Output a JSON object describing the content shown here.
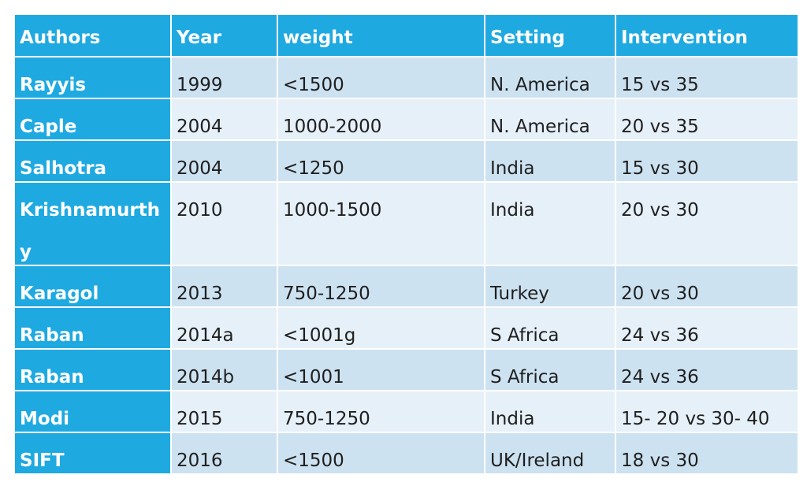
{
  "table": {
    "header": [
      "Authors",
      "Year",
      "weight",
      "Setting",
      "Intervention"
    ],
    "rows": [
      [
        "Rayyis",
        "1999",
        "<1500",
        "N. America",
        "15 vs 35"
      ],
      [
        "Caple",
        "2004",
        "1000-2000",
        "N. America",
        "20 vs 35"
      ],
      [
        "Salhotra",
        "2004",
        "<1250",
        "India",
        "15 vs 30"
      ],
      [
        "Krishnamurthy",
        "2010",
        "1000-1500",
        "India",
        "20 vs 30"
      ],
      [
        "Karagol",
        "2013",
        "750-1250",
        "Turkey",
        "20 vs 30"
      ],
      [
        "Raban",
        "2014a",
        "<1001g",
        "S Africa",
        "24 vs 36"
      ],
      [
        "Raban",
        "2014b",
        "<1001",
        "S Africa",
        "24 vs 36"
      ],
      [
        "Modi",
        "2015",
        "750-1250",
        "India",
        "15- 20 vs 30- 40"
      ],
      [
        "SIFT",
        "2016",
        "<1500",
        "UK/Ireland",
        "18 vs 30"
      ]
    ]
  }
}
